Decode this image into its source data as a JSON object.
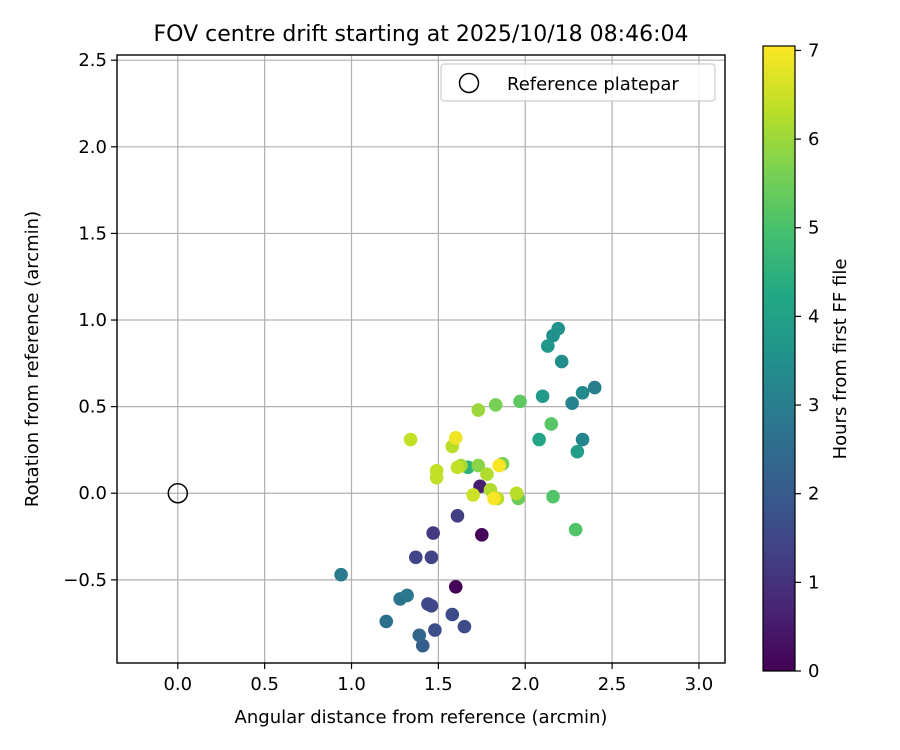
{
  "chart_data": {
    "type": "scatter",
    "title": "FOV centre drift starting at 2025/10/18 08:46:04",
    "xlabel": "Angular distance from reference (arcmin)",
    "ylabel": "Rotation from reference (arcmin)",
    "xlim": [
      -0.35,
      3.15
    ],
    "ylim": [
      -0.98,
      2.53
    ],
    "xticks": [
      0.0,
      0.5,
      1.0,
      1.5,
      2.0,
      2.5,
      3.0
    ],
    "xtick_labels": [
      "0.0",
      "0.5",
      "1.0",
      "1.5",
      "2.0",
      "2.5",
      "3.0"
    ],
    "yticks": [
      -0.5,
      0.0,
      0.5,
      1.0,
      1.5,
      2.0,
      2.5
    ],
    "ytick_labels": [
      "−0.5",
      "0.0",
      "0.5",
      "1.0",
      "1.5",
      "2.0",
      "2.5"
    ],
    "grid": true,
    "legend": {
      "placement": "top-right",
      "entries": [
        "Reference platepar"
      ]
    },
    "reference_point": {
      "x": 0.0,
      "y": 0.0
    },
    "colorbar": {
      "label": "Hours from first FF file",
      "colormap": "viridis",
      "range": [
        0,
        7.05
      ],
      "ticks": [
        0,
        1,
        2,
        3,
        4,
        5,
        6,
        7
      ],
      "tick_labels": [
        "0",
        "1",
        "2",
        "3",
        "4",
        "5",
        "6",
        "7"
      ]
    },
    "points": [
      {
        "x": 1.6,
        "y": -0.54,
        "h": 0.05
      },
      {
        "x": 1.75,
        "y": -0.24,
        "h": 0.1
      },
      {
        "x": 1.74,
        "y": 0.04,
        "h": 0.6
      },
      {
        "x": 1.47,
        "y": -0.23,
        "h": 1.2
      },
      {
        "x": 1.61,
        "y": -0.13,
        "h": 1.3
      },
      {
        "x": 1.46,
        "y": -0.37,
        "h": 1.4
      },
      {
        "x": 1.37,
        "y": -0.37,
        "h": 1.4
      },
      {
        "x": 1.46,
        "y": -0.65,
        "h": 1.5
      },
      {
        "x": 1.44,
        "y": -0.64,
        "h": 1.5
      },
      {
        "x": 1.58,
        "y": -0.7,
        "h": 1.6
      },
      {
        "x": 1.65,
        "y": -0.77,
        "h": 1.6
      },
      {
        "x": 1.48,
        "y": -0.79,
        "h": 1.7
      },
      {
        "x": 1.41,
        "y": -0.88,
        "h": 2.1
      },
      {
        "x": 1.39,
        "y": -0.82,
        "h": 2.3
      },
      {
        "x": 1.2,
        "y": -0.74,
        "h": 2.6
      },
      {
        "x": 1.28,
        "y": -0.61,
        "h": 2.7
      },
      {
        "x": 1.32,
        "y": -0.59,
        "h": 2.8
      },
      {
        "x": 0.94,
        "y": -0.47,
        "h": 2.9
      },
      {
        "x": 2.4,
        "y": 0.61,
        "h": 3.0
      },
      {
        "x": 2.27,
        "y": 0.52,
        "h": 3.1
      },
      {
        "x": 2.33,
        "y": 0.31,
        "h": 3.2
      },
      {
        "x": 2.33,
        "y": 0.58,
        "h": 3.3
      },
      {
        "x": 2.21,
        "y": 0.76,
        "h": 3.4
      },
      {
        "x": 2.16,
        "y": 0.91,
        "h": 3.5
      },
      {
        "x": 2.19,
        "y": 0.95,
        "h": 3.6
      },
      {
        "x": 2.13,
        "y": 0.85,
        "h": 3.7
      },
      {
        "x": 2.1,
        "y": 0.56,
        "h": 3.8
      },
      {
        "x": 2.3,
        "y": 0.24,
        "h": 3.9
      },
      {
        "x": 2.08,
        "y": 0.31,
        "h": 4.1
      },
      {
        "x": 1.67,
        "y": 0.15,
        "h": 4.5
      },
      {
        "x": 2.29,
        "y": -0.21,
        "h": 5.1
      },
      {
        "x": 2.16,
        "y": -0.02,
        "h": 5.1
      },
      {
        "x": 2.15,
        "y": 0.4,
        "h": 5.2
      },
      {
        "x": 1.97,
        "y": 0.53,
        "h": 5.3
      },
      {
        "x": 1.96,
        "y": -0.03,
        "h": 5.5
      },
      {
        "x": 1.87,
        "y": 0.17,
        "h": 5.6
      },
      {
        "x": 1.83,
        "y": 0.51,
        "h": 5.6
      },
      {
        "x": 1.73,
        "y": 0.16,
        "h": 5.8
      },
      {
        "x": 1.73,
        "y": 0.48,
        "h": 6.0
      },
      {
        "x": 1.63,
        "y": 0.16,
        "h": 6.1
      },
      {
        "x": 1.8,
        "y": 0.02,
        "h": 6.2
      },
      {
        "x": 1.78,
        "y": 0.11,
        "h": 6.2
      },
      {
        "x": 1.84,
        "y": -0.03,
        "h": 6.3
      },
      {
        "x": 1.95,
        "y": 0.0,
        "h": 6.3
      },
      {
        "x": 1.58,
        "y": 0.27,
        "h": 6.3
      },
      {
        "x": 1.61,
        "y": 0.15,
        "h": 6.4
      },
      {
        "x": 1.49,
        "y": 0.13,
        "h": 6.4
      },
      {
        "x": 1.49,
        "y": 0.09,
        "h": 6.4
      },
      {
        "x": 1.34,
        "y": 0.31,
        "h": 6.4
      },
      {
        "x": 1.7,
        "y": -0.01,
        "h": 6.5
      },
      {
        "x": 1.6,
        "y": 0.32,
        "h": 6.9
      },
      {
        "x": 1.85,
        "y": 0.16,
        "h": 7.0
      },
      {
        "x": 1.82,
        "y": -0.03,
        "h": 7.0
      }
    ]
  }
}
